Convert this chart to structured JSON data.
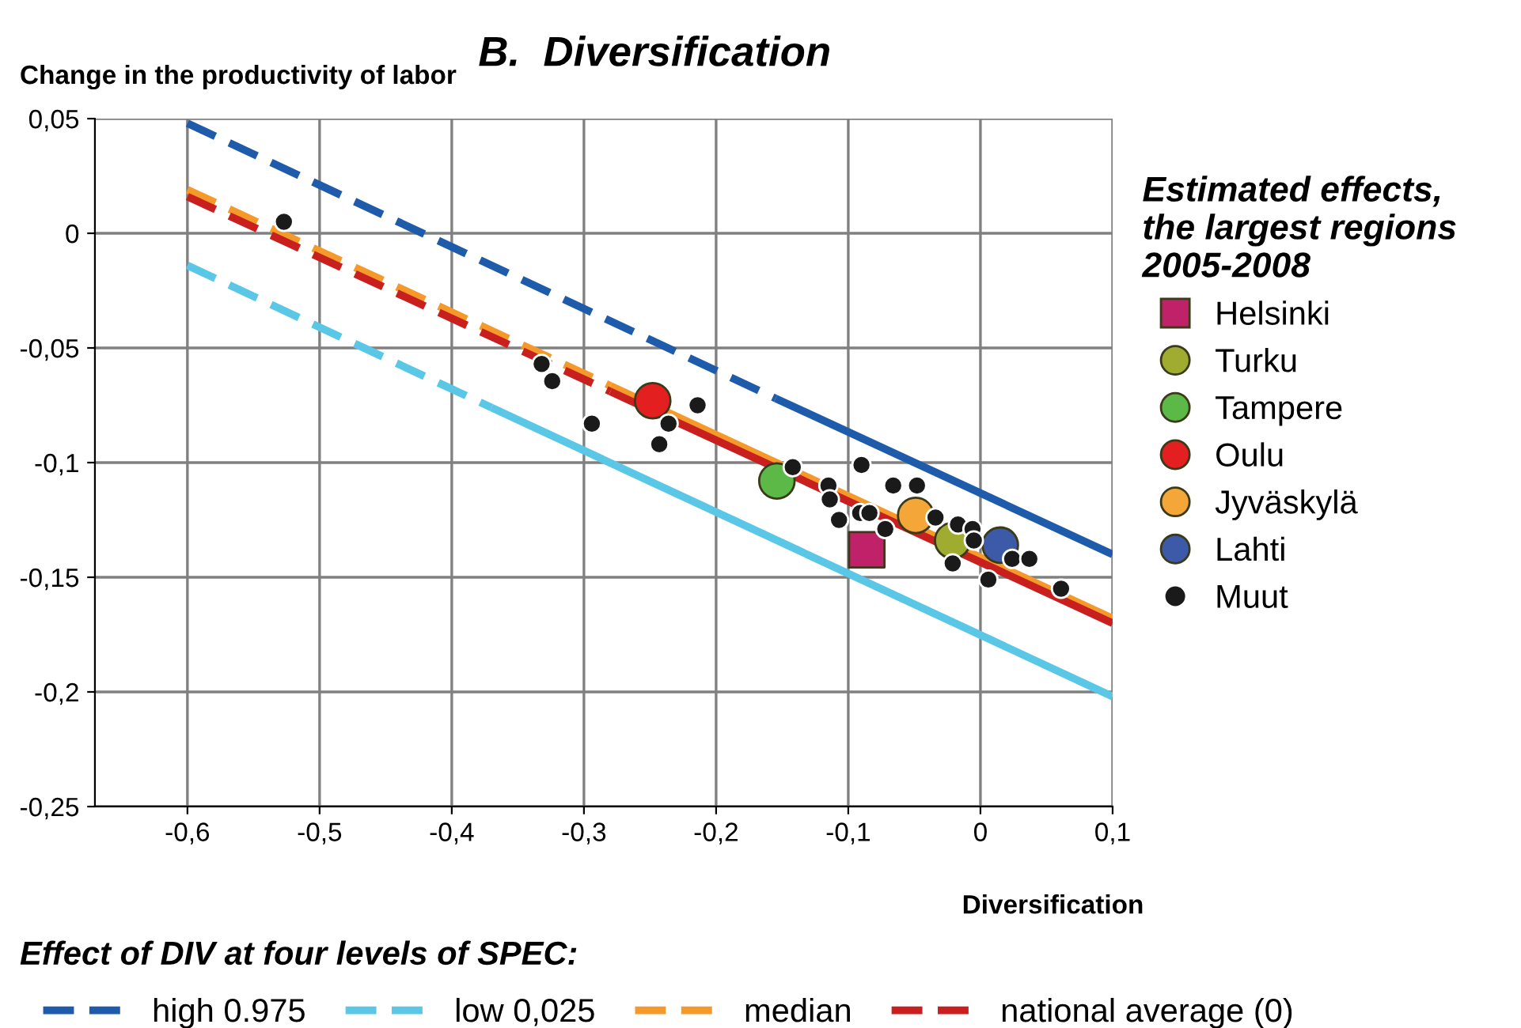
{
  "chart_data": {
    "type": "scatter",
    "title": "B.  Diversification",
    "ylabel": "Change in the productivity of labor",
    "xlabel": "Diversification",
    "legend_title": "Estimated effects,\nthe largest regions\n2005-2008",
    "annotations": [
      "Effect of DIV at four levels of SPEC:"
    ],
    "xlim": [
      -0.67,
      0.1
    ],
    "ylim": [
      -0.25,
      0.05
    ],
    "xticks": [
      {
        "value": -0.6,
        "label": "-0,6"
      },
      {
        "value": -0.5,
        "label": "-0,5"
      },
      {
        "value": -0.4,
        "label": "-0,4"
      },
      {
        "value": -0.3,
        "label": "-0,3"
      },
      {
        "value": -0.2,
        "label": "-0,2"
      },
      {
        "value": -0.1,
        "label": "-0,1"
      },
      0,
      {
        "value": 0.1,
        "label": "0,1"
      }
    ],
    "yticks": [
      {
        "value": -0.25,
        "label": "-0,25"
      },
      {
        "value": -0.2,
        "label": "-0,2"
      },
      {
        "value": -0.15,
        "label": "-0,15"
      },
      {
        "value": -0.1,
        "label": "-0,1"
      },
      {
        "value": -0.05,
        "label": "-0,05"
      },
      0,
      {
        "value": 0.05,
        "label": "0,05"
      }
    ],
    "grid": true,
    "legend": "right",
    "series": [
      {
        "name": "high 0.975",
        "type": "line",
        "line_style": "dashed",
        "color": "#1f5bab",
        "x": [
          -0.6,
          -0.155
        ],
        "values": [
          0.048,
          -0.072
        ]
      },
      {
        "type": "line",
        "line_style": "solid",
        "color": "#1f5bab",
        "x": [
          -0.155,
          0.1
        ],
        "values": [
          -0.072,
          -0.14
        ]
      },
      {
        "name": "low 0,025",
        "type": "line",
        "line_style": "dashed",
        "color": "#5bc7e6",
        "x": [
          -0.6,
          -0.37
        ],
        "values": [
          -0.014,
          -0.076
        ]
      },
      {
        "type": "line",
        "line_style": "solid",
        "color": "#5bc7e6",
        "x": [
          -0.37,
          0.1
        ],
        "values": [
          -0.076,
          -0.202
        ]
      },
      {
        "name": "median",
        "type": "line",
        "line_style": "dashed",
        "color": "#f59a2a",
        "x": [
          -0.6,
          -0.28
        ],
        "values": [
          0.019,
          -0.0665
        ]
      },
      {
        "type": "line",
        "line_style": "solid",
        "color": "#f59a2a",
        "x": [
          -0.28,
          0.1
        ],
        "values": [
          -0.0665,
          -0.168
        ]
      },
      {
        "name": "national average (0)",
        "type": "line",
        "line_style": "dashed",
        "color": "#c8201f",
        "x": [
          -0.6,
          -0.28
        ],
        "values": [
          0.016,
          -0.069
        ]
      },
      {
        "type": "line",
        "line_style": "solid",
        "color": "#c8201f",
        "x": [
          -0.28,
          0.1
        ],
        "values": [
          -0.069,
          -0.17
        ]
      },
      {
        "name": "Helsinki",
        "marker": "square",
        "color": "#c0226a",
        "x": [
          -0.086
        ],
        "values": [
          -0.138
        ]
      },
      {
        "name": "Turku",
        "marker": "circle",
        "color": "#a0ac30",
        "x": [
          -0.021
        ],
        "values": [
          -0.134
        ]
      },
      {
        "name": "Tampere",
        "marker": "circle",
        "color": "#5cb947",
        "x": [
          -0.154
        ],
        "values": [
          -0.108
        ]
      },
      {
        "name": "Oulu",
        "marker": "circle",
        "color": "#e3201f",
        "x": [
          -0.248
        ],
        "values": [
          -0.073
        ]
      },
      {
        "name": "Jyväskylä",
        "marker": "circle",
        "color": "#f5a638",
        "x": [
          -0.049
        ],
        "values": [
          -0.123
        ]
      },
      {
        "name": "Lahti",
        "marker": "circle",
        "color": "#3d5aa8",
        "x": [
          0.015
        ],
        "values": [
          -0.136
        ]
      },
      {
        "name": "Muut",
        "marker": "circle",
        "color": "#1a1a1a",
        "x": [
          -0.527,
          -0.332,
          -0.324,
          -0.294,
          -0.243,
          -0.236,
          -0.214,
          -0.142,
          -0.115,
          -0.114,
          -0.107,
          -0.091,
          -0.084,
          -0.086,
          -0.09,
          -0.072,
          -0.066,
          -0.048,
          -0.034,
          -0.021,
          -0.017,
          -0.006,
          -0.005,
          0.024,
          0.037,
          0.006,
          0.061
        ],
        "values": [
          0.005,
          -0.057,
          -0.0645,
          -0.083,
          -0.092,
          -0.083,
          -0.075,
          -0.102,
          -0.11,
          -0.116,
          -0.125,
          -0.122,
          -0.122,
          null,
          -0.101,
          -0.129,
          -0.11,
          -0.11,
          -0.124,
          -0.144,
          -0.127,
          -0.129,
          -0.134,
          -0.142,
          -0.142,
          -0.151,
          -0.155
        ]
      }
    ]
  }
}
